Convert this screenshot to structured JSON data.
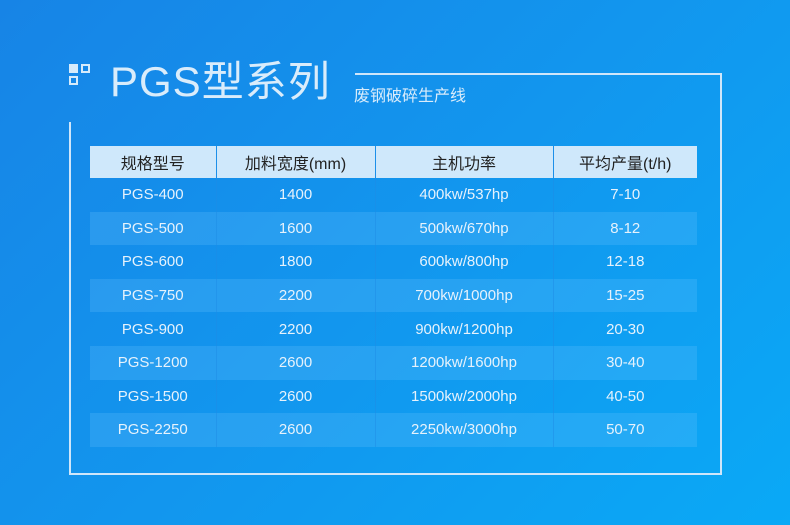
{
  "header": {
    "title": "PGS型系列",
    "subtitle": "废钢破碎生产线"
  },
  "table": {
    "columns": [
      "规格型号",
      "加料宽度(mm)",
      "主机功率",
      "平均产量(t/h)"
    ],
    "rows": [
      [
        "PGS-400",
        "1400",
        "400kw/537hp",
        "7-10"
      ],
      [
        "PGS-500",
        "1600",
        "500kw/670hp",
        "8-12"
      ],
      [
        "PGS-600",
        "1800",
        "600kw/800hp",
        "12-18"
      ],
      [
        "PGS-750",
        "2200",
        "700kw/1000hp",
        "15-25"
      ],
      [
        "PGS-900",
        "2200",
        "900kw/1200hp",
        "20-30"
      ],
      [
        "PGS-1200",
        "2600",
        "1200kw/1600hp",
        "30-40"
      ],
      [
        "PGS-1500",
        "2600",
        "1500kw/2000hp",
        "40-50"
      ],
      [
        "PGS-2250",
        "2600",
        "2250kw/3000hp",
        "50-70"
      ]
    ]
  }
}
